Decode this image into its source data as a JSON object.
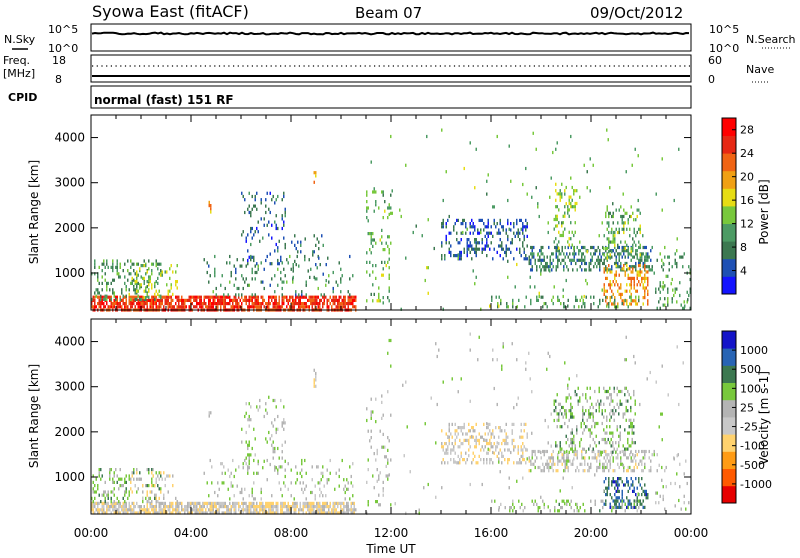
{
  "header": {
    "station": "Syowa East (fitACF)",
    "beam": "Beam 07",
    "date": "09/Oct/2012"
  },
  "top_panels": {
    "nsky_label": "N.Sky",
    "nsky_ticks": [
      "10^5",
      "10^0"
    ],
    "nsearch_label": "N.Search",
    "nsearch_ticks": [
      "10^5",
      "10^0"
    ],
    "freq_label": "Freq.",
    "freq_unit": "[MHz]",
    "freq_ticks": [
      "18",
      "8"
    ],
    "nave_label": "Nave",
    "nave_ticks": [
      "60",
      "0"
    ],
    "cpid_label": "CPID",
    "cpid_text": "normal (fast) 151 RF"
  },
  "x_ticks": [
    "00:00",
    "04:00",
    "08:00",
    "12:00",
    "16:00",
    "20:00",
    "00:00"
  ],
  "x_label": "Time UT",
  "colors": {
    "power_scale": [
      "#1414ff",
      "#1e50b4",
      "#3c7850",
      "#4c9b64",
      "#78c83c",
      "#e6dc14",
      "#f0a014",
      "#f06414",
      "#e62814",
      "#ff0000"
    ],
    "velocity_scale": [
      "#e60000",
      "#ff5a00",
      "#ff9b14",
      "#ffd26e",
      "#c8c8c8",
      "#b4b4b4",
      "#78c83c",
      "#3c7850",
      "#2864b4",
      "#1414c8"
    ]
  },
  "chart_data": [
    {
      "type": "heatmap",
      "title": "Power",
      "ylabel": "Slant Range [km]",
      "xlabel": "Time UT",
      "x_range": [
        "00:00",
        "24:00"
      ],
      "ylim": [
        180,
        4500
      ],
      "y_ticks": [
        1000,
        2000,
        3000,
        4000
      ],
      "colorbar_label": "Power [dB]",
      "colorbar_ticks": [
        "4",
        "8",
        "12",
        "16",
        "20",
        "24",
        "28"
      ],
      "colorbar_range": [
        0,
        30
      ],
      "patches": [
        {
          "t": [
            0.0,
            10.6
          ],
          "r": [
            180,
            500
          ],
          "p": 25,
          "density": 0.75
        },
        {
          "t": [
            0.0,
            2.8
          ],
          "r": [
            400,
            1300
          ],
          "p": 10,
          "density": 0.25
        },
        {
          "t": [
            1.5,
            3.5
          ],
          "r": [
            400,
            1200
          ],
          "p": 14,
          "density": 0.15
        },
        {
          "t": [
            4.5,
            10.5
          ],
          "r": [
            500,
            1400
          ],
          "p": 9,
          "density": 0.1
        },
        {
          "t": [
            6.0,
            7.8
          ],
          "r": [
            1200,
            2800
          ],
          "p": 6,
          "density": 0.14
        },
        {
          "t": [
            8.0,
            9.5
          ],
          "r": [
            800,
            2000
          ],
          "p": 7,
          "density": 0.08
        },
        {
          "t": [
            4.7,
            4.8
          ],
          "r": [
            2300,
            2600
          ],
          "p": 20,
          "density": 0.6
        },
        {
          "t": [
            8.9,
            9.0
          ],
          "r": [
            3000,
            3400
          ],
          "p": 20,
          "density": 0.6
        },
        {
          "t": [
            11.0,
            12.0
          ],
          "r": [
            300,
            2900
          ],
          "p": 12,
          "density": 0.12
        },
        {
          "t": [
            14.0,
            17.5
          ],
          "r": [
            1300,
            2200
          ],
          "p": 5,
          "density": 0.28
        },
        {
          "t": [
            17.5,
            22.5
          ],
          "r": [
            1000,
            1600
          ],
          "p": 8,
          "density": 0.4
        },
        {
          "t": [
            18.5,
            19.5
          ],
          "r": [
            1500,
            3000
          ],
          "p": 14,
          "density": 0.25
        },
        {
          "t": [
            20.5,
            22.0
          ],
          "r": [
            1300,
            2500
          ],
          "p": 12,
          "density": 0.25
        },
        {
          "t": [
            20.5,
            22.3
          ],
          "r": [
            300,
            1200
          ],
          "p": 20,
          "density": 0.35
        },
        {
          "t": [
            16.0,
            22.0
          ],
          "r": [
            200,
            500
          ],
          "p": 10,
          "density": 0.18
        },
        {
          "t": [
            22.5,
            24.0
          ],
          "r": [
            200,
            1600
          ],
          "p": 10,
          "density": 0.12
        },
        {
          "t": [
            11.0,
            24.0
          ],
          "r": [
            180,
            4200
          ],
          "p": 12,
          "density": 0.012
        }
      ]
    },
    {
      "type": "heatmap",
      "title": "Velocity",
      "ylabel": "Slant Range [km]",
      "xlabel": "Time UT",
      "x_range": [
        "00:00",
        "24:00"
      ],
      "ylim": [
        180,
        4500
      ],
      "y_ticks": [
        1000,
        2000,
        3000,
        4000
      ],
      "colorbar_label": "Velocity [m s-1]",
      "colorbar_ticks": [
        "-1000",
        "-500",
        "-100",
        "-25",
        "25",
        "100",
        "500",
        "1000"
      ],
      "colorbar_range": [
        -1250,
        1250
      ],
      "patches": [
        {
          "t": [
            0.0,
            10.6
          ],
          "r": [
            180,
            450
          ],
          "v": -150,
          "density": 0.75
        },
        {
          "t": [
            0.0,
            2.8
          ],
          "r": [
            400,
            1200
          ],
          "v": 300,
          "density": 0.25
        },
        {
          "t": [
            1.5,
            3.5
          ],
          "r": [
            400,
            1200
          ],
          "v": -200,
          "density": 0.12
        },
        {
          "t": [
            4.5,
            10.5
          ],
          "r": [
            500,
            1400
          ],
          "v": 150,
          "density": 0.1
        },
        {
          "t": [
            6.0,
            7.8
          ],
          "r": [
            1200,
            2800
          ],
          "v": 200,
          "density": 0.12
        },
        {
          "t": [
            4.7,
            4.8
          ],
          "r": [
            2300,
            2600
          ],
          "v": -120,
          "density": 0.6
        },
        {
          "t": [
            8.9,
            9.0
          ],
          "r": [
            3000,
            3400
          ],
          "v": -120,
          "density": 0.6
        },
        {
          "t": [
            11.0,
            12.0
          ],
          "r": [
            300,
            2900
          ],
          "v": 100,
          "density": 0.1
        },
        {
          "t": [
            14.0,
            17.5
          ],
          "r": [
            1300,
            2200
          ],
          "v": -150,
          "density": 0.3
        },
        {
          "t": [
            17.5,
            22.5
          ],
          "r": [
            1100,
            1600
          ],
          "v": 0,
          "density": 0.4
        },
        {
          "t": [
            18.5,
            21.8
          ],
          "r": [
            1500,
            3000
          ],
          "v": 300,
          "density": 0.22
        },
        {
          "t": [
            20.5,
            22.3
          ],
          "r": [
            300,
            1000
          ],
          "v": 800,
          "density": 0.4
        },
        {
          "t": [
            16.0,
            22.0
          ],
          "r": [
            200,
            500
          ],
          "v": 250,
          "density": 0.2
        },
        {
          "t": [
            22.5,
            24.0
          ],
          "r": [
            200,
            1600
          ],
          "v": 80,
          "density": 0.1
        },
        {
          "t": [
            11.0,
            24.0
          ],
          "r": [
            180,
            4200
          ],
          "v": 100,
          "density": 0.012
        }
      ]
    }
  ]
}
